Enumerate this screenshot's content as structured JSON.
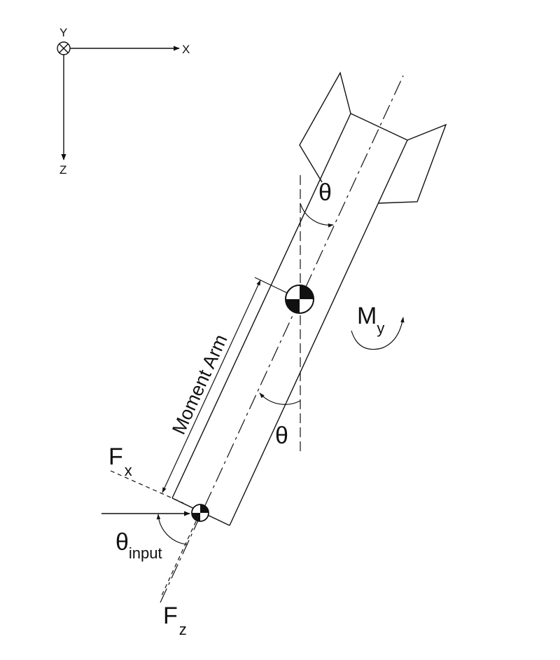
{
  "axes": {
    "y": "Y",
    "x": "X",
    "z": "Z"
  },
  "angle_top": "θ",
  "angle_bottom": "θ",
  "moment": {
    "symbol": "M",
    "subscript": "y"
  },
  "moment_arm": "Moment Arm",
  "force_x": {
    "symbol": "F",
    "subscript": "x"
  },
  "force_z": {
    "symbol": "F",
    "subscript": "z"
  },
  "theta_input": {
    "symbol": "θ",
    "subscript": "input"
  }
}
